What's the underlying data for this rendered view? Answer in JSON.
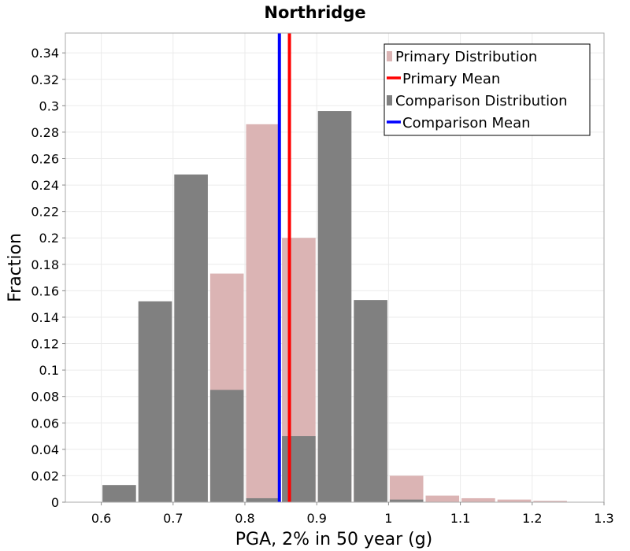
{
  "chart_data": {
    "type": "bar",
    "title": "Northridge",
    "xlabel": "PGA, 2% in 50 year (g)",
    "ylabel": "Fraction",
    "xlim": [
      0.55,
      1.3
    ],
    "ylim": [
      0,
      0.355
    ],
    "bin_width": 0.05,
    "grid": true,
    "xticks": [
      0.6,
      0.7,
      0.8,
      0.9,
      1,
      1.1,
      1.2,
      1.3
    ],
    "xtick_labels": [
      "0.6",
      "0.7",
      "0.8",
      "0.9",
      "1",
      "1.1",
      "1.2",
      "1.3"
    ],
    "yticks": [
      0,
      0.02,
      0.04,
      0.06,
      0.08,
      0.1,
      0.12,
      0.14,
      0.16,
      0.18,
      0.2,
      0.22,
      0.24,
      0.26,
      0.28,
      0.3,
      0.32,
      0.34
    ],
    "ytick_labels": [
      "0",
      "0.02",
      "0.04",
      "0.06",
      "0.08",
      "0.1",
      "0.12",
      "0.14",
      "0.16",
      "0.18",
      "0.2",
      "0.22",
      "0.24",
      "0.26",
      "0.28",
      "0.3",
      "0.32",
      "0.34"
    ],
    "legend_position": "top-right",
    "series": [
      {
        "name": "Primary Distribution",
        "kind": "bars",
        "color": "#dbb4b4",
        "bin_centers": [
          0.775,
          0.825,
          0.875,
          0.925,
          0.975,
          1.025,
          1.075,
          1.125,
          1.175,
          1.225
        ],
        "values": [
          0.173,
          0.286,
          0.2,
          0.05,
          0.13,
          0.02,
          0.005,
          0.003,
          0.002,
          0.001
        ]
      },
      {
        "name": "Primary Mean",
        "kind": "vline",
        "color": "#ff0000",
        "x": 0.862
      },
      {
        "name": "Comparison Distribution",
        "kind": "bars",
        "color": "#808080",
        "bin_centers": [
          0.625,
          0.675,
          0.725,
          0.775,
          0.825,
          0.875,
          0.925,
          0.975,
          1.025
        ],
        "values": [
          0.013,
          0.152,
          0.248,
          0.085,
          0.003,
          0.05,
          0.296,
          0.153,
          0.002
        ]
      },
      {
        "name": "Comparison Mean",
        "kind": "vline",
        "color": "#0000ff",
        "x": 0.848
      }
    ]
  }
}
